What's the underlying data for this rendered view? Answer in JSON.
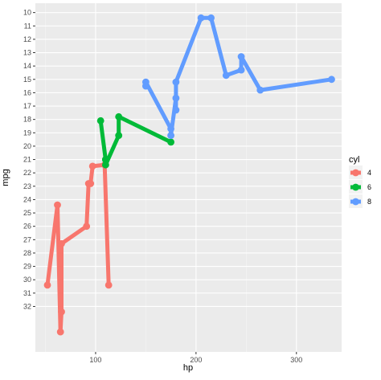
{
  "chart_data": {
    "type": "line",
    "xlabel": "hp",
    "ylabel": "mpg",
    "x_ticks": [
      100,
      200,
      300
    ],
    "y_ticks": [
      10,
      11,
      12,
      13,
      14,
      15,
      16,
      17,
      18,
      19,
      20,
      21,
      22,
      23,
      24,
      25,
      26,
      27,
      28,
      29,
      30,
      31,
      32
    ],
    "xlim": [
      40,
      345
    ],
    "ylim": [
      9.3,
      35.4
    ],
    "y_reversed": true,
    "y_ticks_printed_without_labels_at": [],
    "grid": true,
    "legend": {
      "title": "cyl",
      "position": "right"
    },
    "series": [
      {
        "name": "4",
        "color": "#F8766D",
        "points": [
          [
            52,
            30.4
          ],
          [
            62,
            24.4
          ],
          [
            65,
            33.9
          ],
          [
            66,
            32.4
          ],
          [
            66,
            27.3
          ],
          [
            91,
            26.0
          ],
          [
            93,
            22.8
          ],
          [
            95,
            22.8
          ],
          [
            97,
            21.5
          ],
          [
            109,
            21.4
          ],
          [
            113,
            30.4
          ]
        ]
      },
      {
        "name": "6",
        "color": "#00BA38",
        "points": [
          [
            105,
            18.1
          ],
          [
            110,
            21.0
          ],
          [
            110,
            21.0
          ],
          [
            110,
            21.4
          ],
          [
            123,
            19.2
          ],
          [
            123,
            17.8
          ],
          [
            175,
            19.7
          ]
        ]
      },
      {
        "name": "8",
        "color": "#619CFF",
        "points": [
          [
            150,
            15.5
          ],
          [
            150,
            15.2
          ],
          [
            175,
            18.7
          ],
          [
            175,
            19.2
          ],
          [
            180,
            16.4
          ],
          [
            180,
            17.3
          ],
          [
            180,
            15.2
          ],
          [
            205,
            10.4
          ],
          [
            215,
            10.4
          ],
          [
            230,
            14.7
          ],
          [
            245,
            14.3
          ],
          [
            245,
            13.3
          ],
          [
            264,
            15.8
          ],
          [
            335,
            15.0
          ]
        ]
      }
    ]
  },
  "colors": {
    "panel_bg": "#EBEBEB",
    "grid_major": "#FFFFFF",
    "grid_minor": "#F5F5F5",
    "legend_key_bg": "#F2F2F2"
  }
}
